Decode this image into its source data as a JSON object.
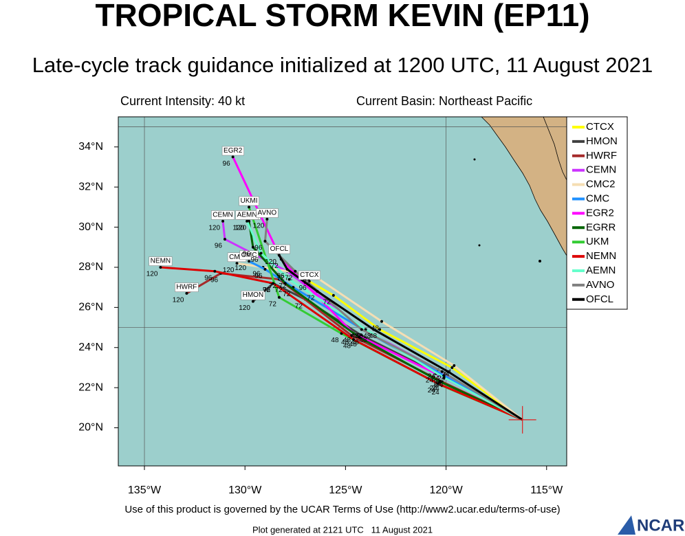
{
  "header": {
    "title": "TROPICAL STORM KEVIN (EP11)",
    "subtitle": "Late-cycle track guidance initialized at 1200 UTC, 11 August 2021",
    "intensity": "Current Intensity: 40 kt",
    "basin": "Current Basin: Northeast Pacific"
  },
  "map": {
    "xlim": [
      -136.3,
      -114.0
    ],
    "ylim": [
      18.1,
      35.5
    ],
    "xticks": [
      {
        "value": -135,
        "label": "135°W"
      },
      {
        "value": -130,
        "label": "130°W"
      },
      {
        "value": -125,
        "label": "125°W"
      },
      {
        "value": -120,
        "label": "120°W"
      },
      {
        "value": -115,
        "label": "115°W"
      }
    ],
    "yticks": [
      {
        "value": 20,
        "label": "20°N"
      },
      {
        "value": 22,
        "label": "22°N"
      },
      {
        "value": 24,
        "label": "24°N"
      },
      {
        "value": 26,
        "label": "26°N"
      },
      {
        "value": 28,
        "label": "28°N"
      },
      {
        "value": 30,
        "label": "30°N"
      },
      {
        "value": 32,
        "label": "32°N"
      },
      {
        "value": 34,
        "label": "34°N"
      }
    ],
    "grid_lon": [
      -135,
      -120
    ],
    "grid_lat": [
      25,
      35
    ],
    "initial_position": {
      "lon": -116.2,
      "lat": 20.4
    },
    "tracks": [
      {
        "name": "CTCX",
        "color": "#ffff00",
        "end_label": "CTCX",
        "hours": [
          24,
          48,
          72,
          96
        ],
        "lon": [
          -119.7,
          -123.3,
          -125.6,
          -126.8
        ],
        "lat": [
          23.0,
          24.9,
          26.6,
          27.3
        ]
      },
      {
        "name": "HMON",
        "color": "#404040",
        "end_label": "HMON",
        "hours": [
          24,
          48,
          72,
          96,
          120
        ],
        "lon": [
          -120.0,
          -124.2,
          -127.0,
          -128.6,
          -129.6
        ],
        "lat": [
          22.5,
          24.6,
          26.4,
          27.2,
          26.3
        ]
      },
      {
        "name": "HWRF",
        "color": "#a52a2a",
        "end_label": "HWRF",
        "hours": [
          24,
          48,
          72,
          96,
          120
        ],
        "lon": [
          -120.2,
          -124.7,
          -128.3,
          -131.2,
          -132.9
        ],
        "lat": [
          22.3,
          24.6,
          27.4,
          27.7,
          26.7
        ]
      },
      {
        "name": "CEMN",
        "color": "#cc33ff",
        "end_label": "CEMN",
        "hours": [
          24,
          48,
          72,
          96,
          120
        ],
        "lon": [
          -120.4,
          -124.1,
          -127.9,
          -131.0,
          -131.1
        ],
        "lat": [
          22.9,
          24.9,
          27.8,
          29.4,
          30.3
        ]
      },
      {
        "name": "CMC2",
        "color": "#f5deb3",
        "end_label": "CMC",
        "hours": [
          24,
          48,
          72,
          96,
          120
        ],
        "lon": [
          -119.6,
          -123.2,
          -126.6,
          -129.1,
          -130.4
        ],
        "lat": [
          23.1,
          25.3,
          27.6,
          28.0,
          28.2
        ]
      },
      {
        "name": "CMC",
        "color": "#1e90ff",
        "end_label": "CMC",
        "hours": [
          24,
          48,
          72,
          96,
          120
        ],
        "lon": [
          -120.1,
          -123.8,
          -127.6,
          -129.0,
          -129.8
        ],
        "lat": [
          22.6,
          24.7,
          27.0,
          27.9,
          28.3
        ]
      },
      {
        "name": "EGR2",
        "color": "#ff00ff",
        "end_label": "EGR2",
        "hours": [
          24,
          48,
          72,
          96
        ],
        "lon": [
          -120.5,
          -124.6,
          -128.2,
          -130.6
        ],
        "lat": [
          22.7,
          24.7,
          28.4,
          33.5
        ]
      },
      {
        "name": "EGRR",
        "color": "#006400",
        "end_label": "EGRR",
        "hours": [
          24,
          48,
          72,
          96,
          120
        ],
        "lon": [
          -120.3,
          -124.3,
          -128.0,
          -129.6,
          -129.8
        ],
        "lat": [
          22.3,
          24.5,
          27.2,
          29.0,
          30.3
        ]
      },
      {
        "name": "UKM",
        "color": "#33cc33",
        "end_label": "UKMI",
        "hours": [
          24,
          48,
          72,
          96
        ],
        "lon": [
          -120.2,
          -125.2,
          -128.3,
          -129.8
        ],
        "lat": [
          22.1,
          24.7,
          26.5,
          31.0
        ]
      },
      {
        "name": "NEMN",
        "color": "#dd0000",
        "end_label": "NEMN",
        "hours": [
          24,
          48,
          72,
          96,
          120
        ],
        "lon": [
          -120.4,
          -124.6,
          -128.6,
          -131.5,
          -134.2
        ],
        "lat": [
          22.2,
          24.4,
          27.2,
          27.8,
          28.0
        ]
      },
      {
        "name": "AEMN",
        "color": "#66ffcc",
        "end_label": "AEMN",
        "hours": [
          24,
          48,
          72,
          96,
          120
        ],
        "lon": [
          -120.1,
          -124.0,
          -127.8,
          -129.2,
          -129.9
        ],
        "lat": [
          22.5,
          24.9,
          27.4,
          28.7,
          30.3
        ]
      },
      {
        "name": "AVNO",
        "color": "#808080",
        "end_label": "AVNO",
        "hours": [
          24,
          48,
          72,
          96,
          120
        ],
        "lon": [
          -120.2,
          -124.2,
          -127.5,
          -129.0,
          -128.9
        ],
        "lat": [
          22.8,
          24.9,
          27.8,
          29.3,
          30.4
        ]
      },
      {
        "name": "OFCL",
        "color": "#000000",
        "end_label": "OFCL",
        "hours": [
          24,
          48,
          72,
          96,
          120
        ],
        "lon": [
          -119.9,
          -123.6,
          -126.4,
          -127.9,
          -128.3
        ],
        "lat": [
          22.8,
          24.9,
          26.8,
          27.9,
          28.6
        ]
      }
    ]
  },
  "footer": {
    "terms": "Use of this product is governed by the UCAR Terms of Use (http://www2.ucar.edu/terms-of-use)",
    "generated": "Plot generated at 2121 UTC   11 August 2021",
    "logo": "NCAR"
  }
}
